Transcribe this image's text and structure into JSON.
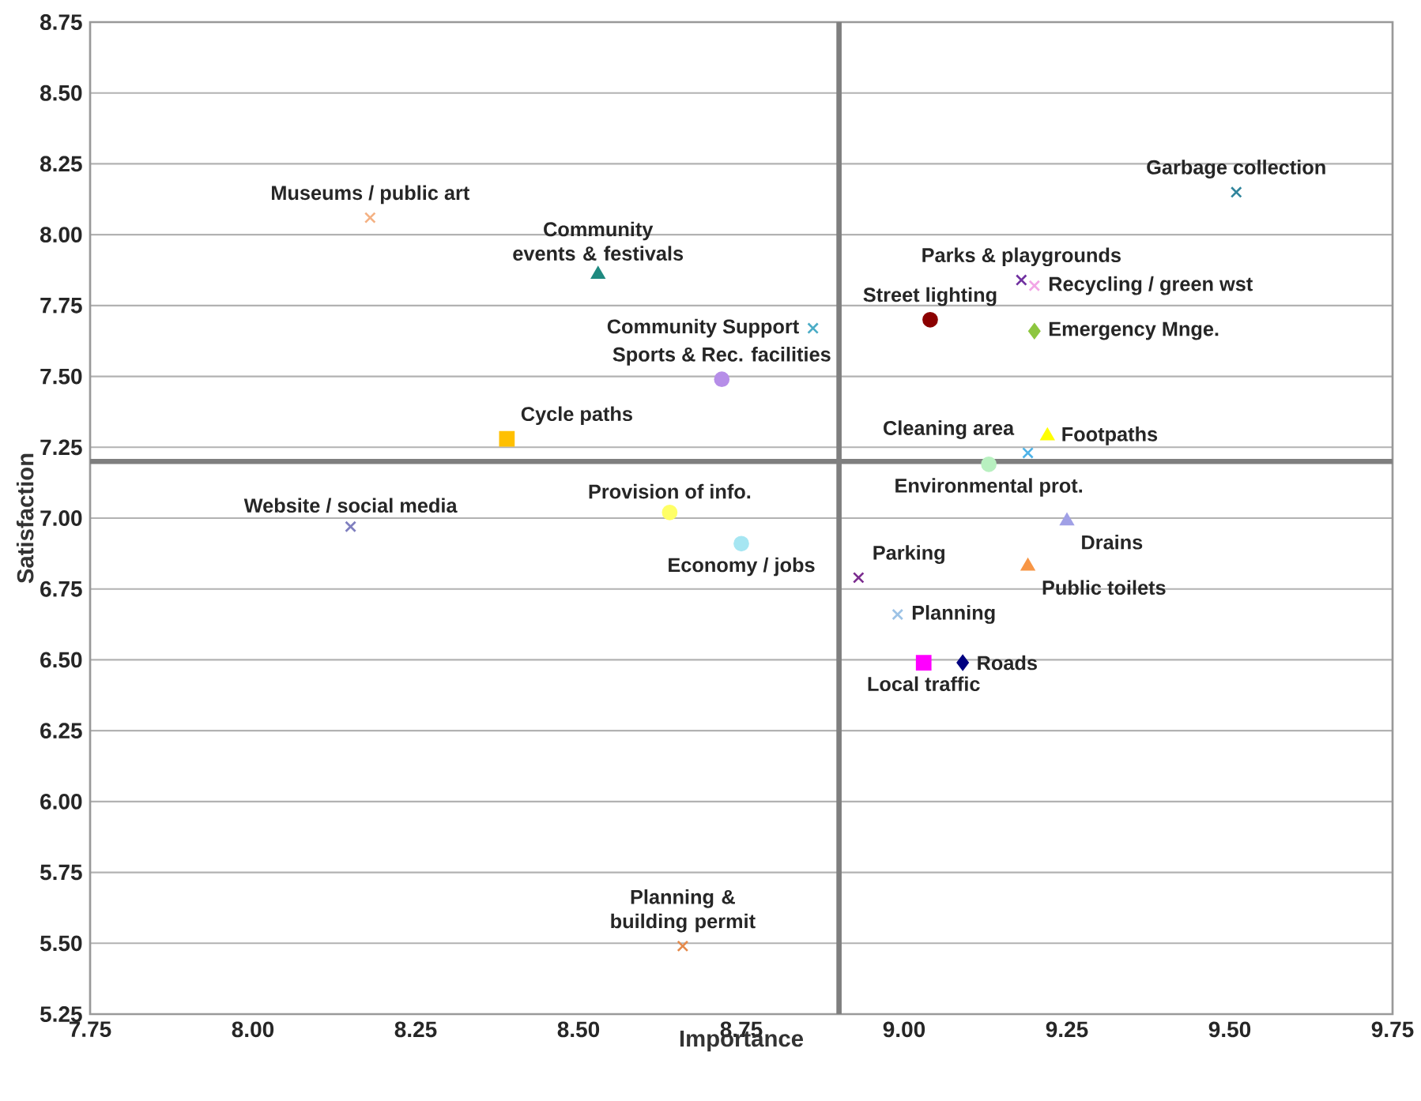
{
  "chart_data": {
    "type": "scatter",
    "xlabel": "Importance",
    "ylabel": "Satisfaction",
    "xlim": [
      7.75,
      9.75
    ],
    "ylim": [
      5.25,
      8.75
    ],
    "xticks": [
      {
        "value": 7.75,
        "label": "7.75"
      },
      {
        "value": 8.0,
        "label": "8.00"
      },
      {
        "value": 8.25,
        "label": "8.25"
      },
      {
        "value": 8.5,
        "label": "8.50"
      },
      {
        "value": 8.75,
        "label": "8.75"
      },
      {
        "value": 9.0,
        "label": "9.00"
      },
      {
        "value": 9.25,
        "label": "9.25"
      },
      {
        "value": 9.5,
        "label": "9.50"
      },
      {
        "value": 9.75,
        "label": "9.75"
      }
    ],
    "yticks": [
      {
        "value": 5.25,
        "label": "5.25"
      },
      {
        "value": 5.5,
        "label": "5.50"
      },
      {
        "value": 5.75,
        "label": "5.75"
      },
      {
        "value": 6.0,
        "label": "6.00"
      },
      {
        "value": 6.25,
        "label": "6.25"
      },
      {
        "value": 6.5,
        "label": "6.50"
      },
      {
        "value": 6.75,
        "label": "6.75"
      },
      {
        "value": 7.0,
        "label": "7.00"
      },
      {
        "value": 7.25,
        "label": "7.25"
      },
      {
        "value": 7.5,
        "label": "7.50"
      },
      {
        "value": 7.75,
        "label": "7.75"
      },
      {
        "value": 8.0,
        "label": "8.00"
      },
      {
        "value": 8.25,
        "label": "8.25"
      },
      {
        "value": 8.5,
        "label": "8.50"
      },
      {
        "value": 8.75,
        "label": "8.75"
      }
    ],
    "grid": "y",
    "ref_lines": [
      {
        "axis": "x",
        "value": 8.9,
        "color": "#7f7f7f"
      },
      {
        "axis": "y",
        "value": 7.2,
        "color": "#7f7f7f"
      }
    ],
    "series": [
      {
        "name": "Museums / public art",
        "color": "#f4b183",
        "marker": "cross",
        "x": [
          8.18
        ],
        "values": [
          8.06
        ]
      },
      {
        "name": "Community events & festivals",
        "color": "#1f8a80",
        "marker": "triangle",
        "x": [
          8.53
        ],
        "values": [
          7.86
        ]
      },
      {
        "name": "Community Support",
        "color": "#4bacc6",
        "marker": "cross",
        "x": [
          8.86
        ],
        "values": [
          7.67
        ]
      },
      {
        "name": "Sports & Rec. facilities",
        "color": "#b68ee8",
        "marker": "circle",
        "x": [
          8.72
        ],
        "values": [
          7.49
        ]
      },
      {
        "name": "Cycle paths",
        "color": "#ffc000",
        "marker": "square",
        "x": [
          8.39
        ],
        "values": [
          7.28
        ]
      },
      {
        "name": "Website / social media",
        "color": "#7f7fbf",
        "marker": "cross",
        "x": [
          8.15
        ],
        "values": [
          6.97
        ]
      },
      {
        "name": "Provision of info.",
        "color": "#ffff66",
        "marker": "circle",
        "x": [
          8.64
        ],
        "values": [
          7.02
        ]
      },
      {
        "name": "Economy / jobs",
        "color": "#a6e6f2",
        "marker": "circle",
        "x": [
          8.75
        ],
        "values": [
          6.91
        ]
      },
      {
        "name": "Planning & building permit",
        "color": "#e58a4b",
        "marker": "cross",
        "x": [
          8.66
        ],
        "values": [
          5.49
        ]
      },
      {
        "name": "Garbage collection",
        "color": "#31859c",
        "marker": "cross",
        "x": [
          9.51
        ],
        "values": [
          8.15
        ]
      },
      {
        "name": "Parks & playgrounds",
        "color": "#7030a0",
        "marker": "cross",
        "x": [
          9.18
        ],
        "values": [
          7.84
        ]
      },
      {
        "name": "Recycling / green wst",
        "color": "#f2a6e6",
        "marker": "cross",
        "x": [
          9.2
        ],
        "values": [
          7.82
        ]
      },
      {
        "name": "Street lighting",
        "color": "#8b0000",
        "marker": "circle",
        "x": [
          9.04
        ],
        "values": [
          7.7
        ]
      },
      {
        "name": "Emergency Mnge.",
        "color": "#8dc63f",
        "marker": "diamond",
        "x": [
          9.2
        ],
        "values": [
          7.66
        ]
      },
      {
        "name": "Cleaning area",
        "color": "#4fb3e8",
        "marker": "cross",
        "x": [
          9.19
        ],
        "values": [
          7.23
        ]
      },
      {
        "name": "Footpaths",
        "color": "#ffff00",
        "marker": "triangle",
        "x": [
          9.22
        ],
        "values": [
          7.29
        ]
      },
      {
        "name": "Environmental prot.",
        "color": "#b8f0c0",
        "marker": "circle",
        "x": [
          9.13
        ],
        "values": [
          7.19
        ]
      },
      {
        "name": "Drains",
        "color": "#a0a0e6",
        "marker": "triangle",
        "x": [
          9.25
        ],
        "values": [
          6.99
        ]
      },
      {
        "name": "Public toilets",
        "color": "#f79646",
        "marker": "triangle",
        "x": [
          9.19
        ],
        "values": [
          6.83
        ]
      },
      {
        "name": "Parking",
        "color": "#7b2c8f",
        "marker": "cross",
        "x": [
          8.93
        ],
        "values": [
          6.79
        ]
      },
      {
        "name": "Planning",
        "color": "#9dc3e6",
        "marker": "cross",
        "x": [
          8.99
        ],
        "values": [
          6.66
        ]
      },
      {
        "name": "Local traffic",
        "color": "#ff00ff",
        "marker": "square",
        "x": [
          9.03
        ],
        "values": [
          6.49
        ]
      },
      {
        "name": "Roads",
        "color": "#000080",
        "marker": "diamond",
        "x": [
          9.09
        ],
        "values": [
          6.49
        ]
      }
    ]
  }
}
